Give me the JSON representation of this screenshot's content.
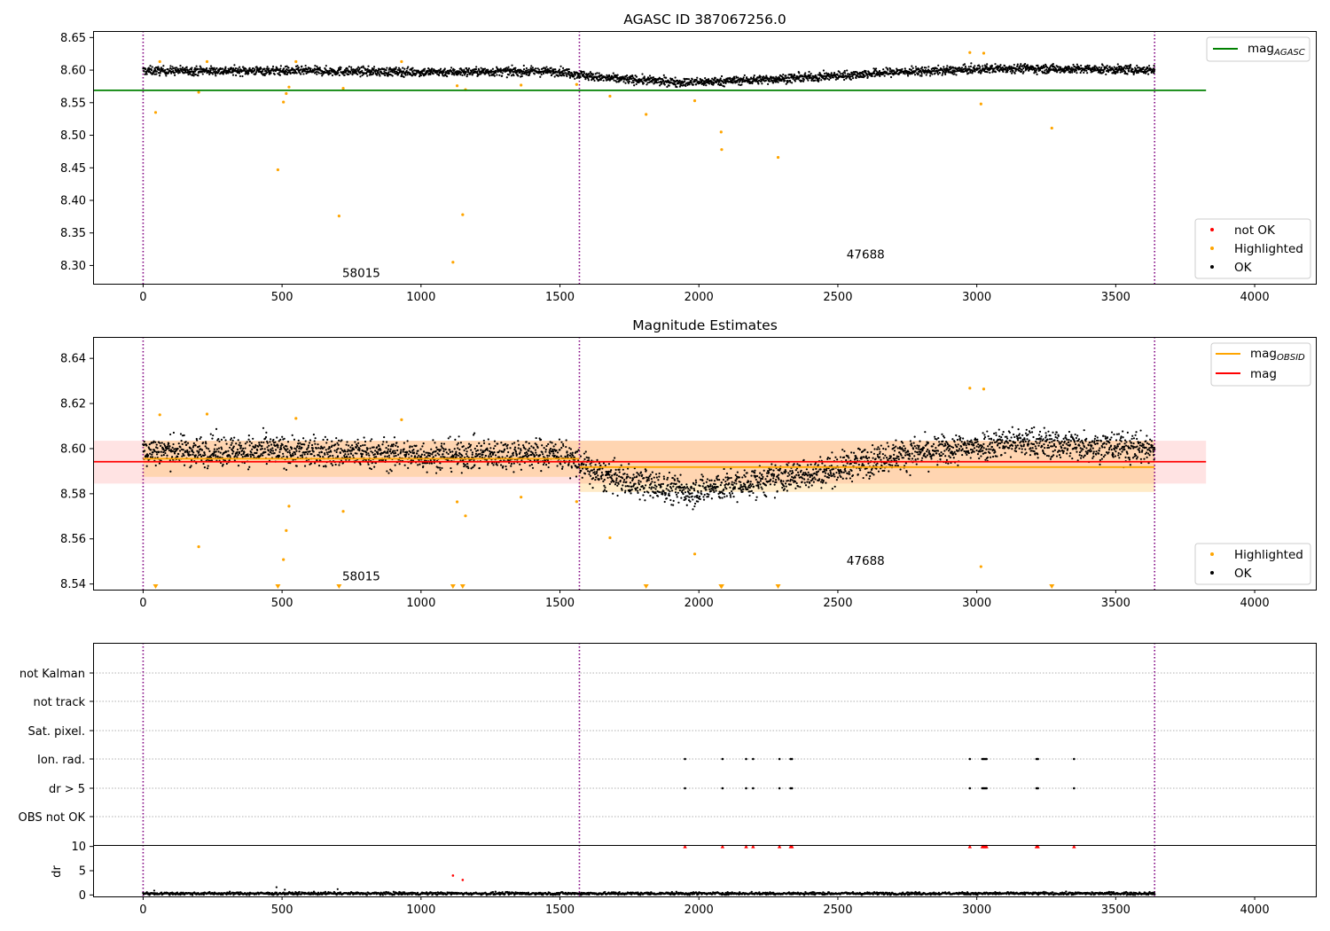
{
  "chart_data": [
    {
      "type": "scatter",
      "title": "AGASC ID 387067256.0",
      "xlabel": "",
      "ylabel": "",
      "xlim": [
        -180,
        4220
      ],
      "ylim": [
        8.272,
        8.66
      ],
      "xticks": [
        0,
        500,
        1000,
        1500,
        2000,
        2500,
        3000,
        3500,
        4000
      ],
      "yticks": [
        8.3,
        8.35,
        8.4,
        8.45,
        8.5,
        8.55,
        8.6,
        8.65
      ],
      "grid": false,
      "obs_boundaries": [
        0,
        1570,
        3640
      ],
      "annotations": [
        {
          "text": "58015",
          "x": 785,
          "y": 8.282
        },
        {
          "text": "47688",
          "x": 2600,
          "y": 8.311
        }
      ],
      "series": [
        {
          "name": "mag_AGASC",
          "type": "hline",
          "y": 8.569,
          "x_range": [
            -180,
            3825
          ],
          "color": "#008000"
        },
        {
          "name": "not OK",
          "color": "#ff0000",
          "points": []
        },
        {
          "name": "Highlighted",
          "color": "#ffa500",
          "points": [
            [
              45,
              8.535
            ],
            [
              60,
              8.613
            ],
            [
              200,
              8.566
            ],
            [
              230,
              8.613
            ],
            [
              485,
              8.447
            ],
            [
              505,
              8.551
            ],
            [
              515,
              8.564
            ],
            [
              525,
              8.574
            ],
            [
              550,
              8.613
            ],
            [
              705,
              8.376
            ],
            [
              720,
              8.572
            ],
            [
              930,
              8.613
            ],
            [
              1115,
              8.305
            ],
            [
              1130,
              8.576
            ],
            [
              1150,
              8.378
            ],
            [
              1160,
              8.57
            ],
            [
              1360,
              8.577
            ],
            [
              1560,
              8.578
            ],
            [
              1680,
              8.56
            ],
            [
              1810,
              8.532
            ],
            [
              1985,
              8.553
            ],
            [
              2080,
              8.505
            ],
            [
              2082,
              8.478
            ],
            [
              2285,
              8.466
            ],
            [
              2975,
              8.627
            ],
            [
              3015,
              8.548
            ],
            [
              3025,
              8.626
            ],
            [
              3270,
              8.511
            ]
          ]
        },
        {
          "name": "OK",
          "color": "#000000",
          "description": "dense scatter of OK samples",
          "trend": [
            [
              0,
              8.599
            ],
            [
              500,
              8.599
            ],
            [
              1000,
              8.597
            ],
            [
              1500,
              8.598
            ],
            [
              1650,
              8.588
            ],
            [
              1950,
              8.581
            ],
            [
              2200,
              8.585
            ],
            [
              2450,
              8.59
            ],
            [
              2700,
              8.597
            ],
            [
              2950,
              8.6
            ],
            [
              3100,
              8.603
            ],
            [
              3640,
              8.6
            ]
          ],
          "spread": 0.006
        }
      ],
      "legend_upper": {
        "placement": "top-right",
        "entries": [
          {
            "label_main": "mag",
            "label_sub": "AGASC",
            "color": "#008000"
          }
        ]
      },
      "legend_lower": {
        "placement": "bottom-right",
        "entries": [
          {
            "label": "not OK",
            "color": "#ff0000"
          },
          {
            "label": "Highlighted",
            "color": "#ffa500"
          },
          {
            "label": "OK",
            "color": "#000000"
          }
        ]
      }
    },
    {
      "type": "scatter",
      "title": "Magnitude Estimates",
      "xlabel": "",
      "ylabel": "",
      "xlim": [
        -180,
        4220
      ],
      "ylim": [
        8.5375,
        8.6495
      ],
      "xticks": [
        0,
        500,
        1000,
        1500,
        2000,
        2500,
        3000,
        3500,
        4000
      ],
      "yticks": [
        8.54,
        8.56,
        8.58,
        8.6,
        8.62,
        8.64
      ],
      "grid": false,
      "obs_boundaries": [
        0,
        1570,
        3640
      ],
      "annotations": [
        {
          "text": "58015",
          "x": 785,
          "y": 8.5417
        },
        {
          "text": "47688",
          "x": 2600,
          "y": 8.5485
        }
      ],
      "bands": [
        {
          "name": "mag range",
          "y0": 8.5845,
          "y1": 8.6035,
          "x_range": [
            -180,
            3825
          ],
          "color": "#ff8080",
          "opacity": 0.22
        },
        {
          "name": "mag_OBSID range 1",
          "y0": 8.5875,
          "y1": 8.6035,
          "x_range": [
            0,
            1570
          ],
          "color": "#ffa500",
          "opacity": 0.22
        },
        {
          "name": "mag_OBSID range 2",
          "y0": 8.5808,
          "y1": 8.6035,
          "x_range": [
            1570,
            3640
          ],
          "color": "#ffa500",
          "opacity": 0.22
        }
      ],
      "series": [
        {
          "name": "mag_OBSID",
          "type": "segments",
          "color": "#ffa500",
          "segments": [
            {
              "x": [
                0,
                1570
              ],
              "y": 8.5955
            },
            {
              "x": [
                1570,
                3640
              ],
              "y": 8.5918
            }
          ]
        },
        {
          "name": "mag",
          "type": "hline",
          "y": 8.5942,
          "x_range": [
            -180,
            3825
          ],
          "color": "#ff0000"
        },
        {
          "name": "Highlighted",
          "color": "#ffa500",
          "points": [
            [
              60,
              8.615
            ],
            [
              200,
              8.5565
            ],
            [
              230,
              8.6153
            ],
            [
              505,
              8.5508
            ],
            [
              515,
              8.5637
            ],
            [
              525,
              8.5745
            ],
            [
              550,
              8.6134
            ],
            [
              720,
              8.5722
            ],
            [
              930,
              8.6128
            ],
            [
              1130,
              8.5764
            ],
            [
              1160,
              8.5702
            ],
            [
              1360,
              8.5785
            ],
            [
              1560,
              8.5765
            ],
            [
              1680,
              8.5605
            ],
            [
              1985,
              8.5533
            ],
            [
              2975,
              8.6268
            ],
            [
              3015,
              8.5477
            ],
            [
              3025,
              8.6264
            ]
          ]
        },
        {
          "name": "Highlighted (off-scale, below)",
          "marker": "triangle-down",
          "color": "#ffa500",
          "x": [
            45,
            485,
            705,
            1115,
            1150,
            1810,
            2080,
            2082,
            2285,
            3270
          ]
        },
        {
          "name": "OK",
          "color": "#000000",
          "description": "dense scatter of OK samples",
          "trend": [
            [
              0,
              8.599
            ],
            [
              500,
              8.599
            ],
            [
              1000,
              8.597
            ],
            [
              1500,
              8.598
            ],
            [
              1650,
              8.588
            ],
            [
              1950,
              8.581
            ],
            [
              2200,
              8.585
            ],
            [
              2450,
              8.59
            ],
            [
              2700,
              8.597
            ],
            [
              2950,
              8.6
            ],
            [
              3100,
              8.603
            ],
            [
              3640,
              8.6
            ]
          ],
          "spread": 0.006
        }
      ],
      "legend_upper": {
        "placement": "top-right",
        "entries": [
          {
            "label_main": "mag",
            "label_sub": "OBSID",
            "color": "#ffa500"
          },
          {
            "label_main": "mag",
            "label_sub": "",
            "color": "#ff0000"
          }
        ]
      },
      "legend_lower": {
        "placement": "bottom-right",
        "entries": [
          {
            "label": "Highlighted",
            "color": "#ffa500"
          },
          {
            "label": "OK",
            "color": "#000000"
          }
        ]
      }
    },
    {
      "type": "scatter",
      "title": "",
      "xlim": [
        -180,
        4220
      ],
      "categories": [
        "OBS not OK",
        "dr > 5",
        "Ion. rad.",
        "Sat. pixel.",
        "not track",
        "not Kalman"
      ],
      "grid": true,
      "obs_boundaries": [
        0,
        1570,
        3640
      ],
      "series": [
        {
          "name": "Ion. rad.",
          "color": "#000000",
          "x": [
            1950,
            2085,
            2170,
            2195,
            2290,
            2330,
            2335,
            2975,
            3020,
            3025,
            3030,
            3035,
            3215,
            3220,
            3350
          ]
        },
        {
          "name": "dr > 5",
          "color": "#000000",
          "x": [
            1950,
            2085,
            2170,
            2195,
            2290,
            2330,
            2335,
            2975,
            3020,
            3025,
            3030,
            3035,
            3215,
            3220,
            3350
          ]
        }
      ]
    },
    {
      "type": "scatter",
      "title": "",
      "xlabel": "",
      "ylabel": "dr",
      "xlim": [
        -180,
        4220
      ],
      "ylim": [
        -0.3,
        10.3
      ],
      "xticks": [
        0,
        500,
        1000,
        1500,
        2000,
        2500,
        3000,
        3500,
        4000
      ],
      "yticks": [
        0,
        5,
        10
      ],
      "grid": false,
      "obs_boundaries": [
        0,
        1570,
        3640
      ],
      "series": [
        {
          "name": "dr > 10 (clipped)",
          "marker": "triangle-up",
          "color": "#ff0000",
          "x": [
            1950,
            2085,
            2170,
            2195,
            2290,
            2330,
            2335,
            2975,
            3020,
            3025,
            3030,
            3035,
            3215,
            3220,
            3350
          ]
        },
        {
          "name": "dr highlighted",
          "color": "#ff0000",
          "points": [
            [
              1115,
              4.0
            ],
            [
              1150,
              3.1
            ]
          ]
        },
        {
          "name": "dr",
          "color": "#000000",
          "description": "dense dr samples near zero",
          "points_extra": [
            [
              480,
              1.6
            ],
            [
              510,
              1.1
            ],
            [
              700,
              1.2
            ],
            [
              40,
              0.9
            ]
          ],
          "base": 0.3
        }
      ]
    }
  ]
}
